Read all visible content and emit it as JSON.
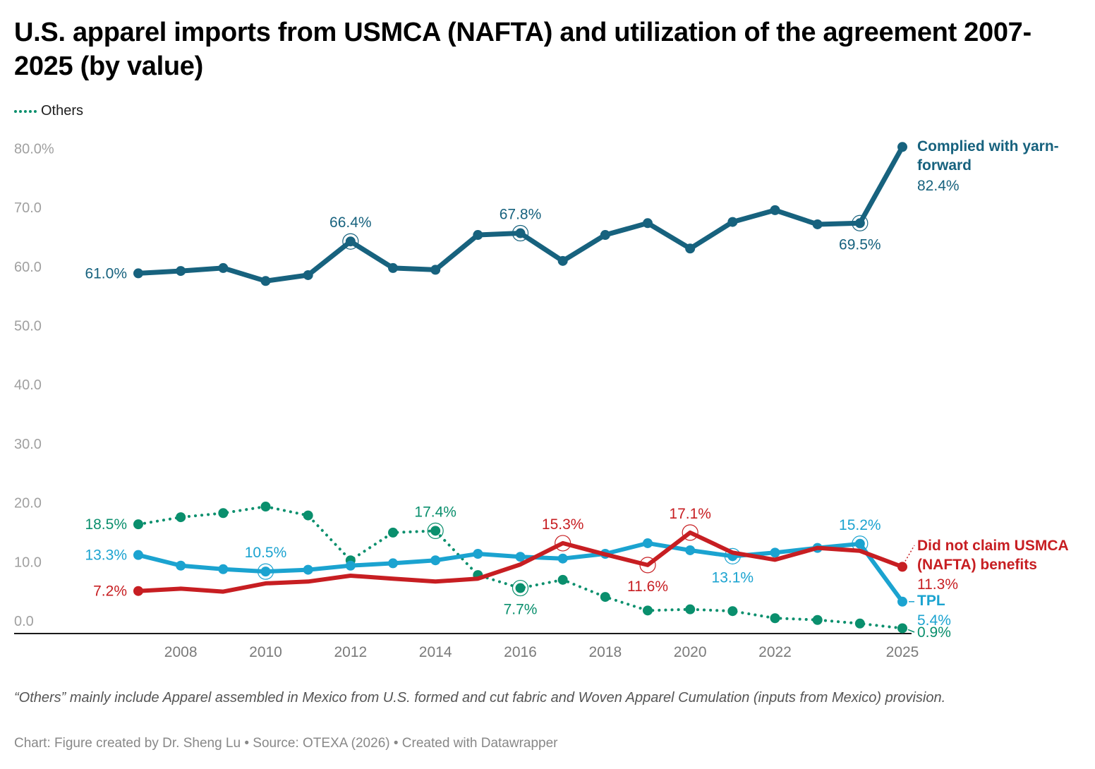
{
  "header": {
    "title": "U.S. apparel imports from USMCA (NAFTA) and utilization of the agreement 2007-2025 (by value)"
  },
  "legend": {
    "items": [
      {
        "label": "Others",
        "color": "#0a8f6d",
        "style": "dotted"
      }
    ]
  },
  "footer": {
    "notes": "“Others” mainly include Apparel assembled in Mexico from U.S. formed and cut fabric and Woven Apparel Cumulation (inputs from Mexico) provision.",
    "byline": "Chart: Figure created by Dr. Sheng Lu • Source: OTEXA (2026) • Created with Datawrapper"
  },
  "chart_data": {
    "type": "line",
    "title": "U.S. apparel imports from USMCA (NAFTA) and utilization of the agreement 2007-2025 (by value)",
    "xlabel": "",
    "ylabel": "",
    "x": [
      2007,
      2008,
      2009,
      2010,
      2011,
      2012,
      2013,
      2014,
      2015,
      2016,
      2017,
      2018,
      2019,
      2020,
      2021,
      2022,
      2023,
      2024,
      2025
    ],
    "x_tick_labels": [
      "2008",
      "2010",
      "2012",
      "2014",
      "2016",
      "2018",
      "2020",
      "2022",
      "2025"
    ],
    "x_ticks": [
      2008,
      2010,
      2012,
      2014,
      2016,
      2018,
      2020,
      2022,
      2025
    ],
    "y_tick_labels": [
      "0.0",
      "10.0",
      "20.0",
      "30.0",
      "40.0",
      "50.0",
      "60.0",
      "70.0",
      "80.0%"
    ],
    "y_ticks": [
      0,
      10,
      20,
      30,
      40,
      50,
      60,
      70,
      80
    ],
    "ylim": [
      0,
      85
    ],
    "grid": false,
    "legend_position": "top-left",
    "series": [
      {
        "name": "Complied with yarn-forward",
        "name_lines": [
          "Complied with yarn-",
          "forward"
        ],
        "color": "#17627e",
        "style": "solid",
        "end_label": "82.4%",
        "values": [
          61.0,
          61.4,
          61.9,
          59.7,
          60.7,
          66.4,
          61.9,
          61.6,
          67.5,
          67.8,
          63.1,
          67.5,
          69.5,
          65.2,
          69.7,
          71.7,
          69.3,
          69.5,
          82.4
        ],
        "annotations": [
          {
            "x": 2007,
            "label": "61.0%",
            "pos": "left"
          },
          {
            "x": 2012,
            "label": "66.4%",
            "pos": "above",
            "ring": true
          },
          {
            "x": 2016,
            "label": "67.8%",
            "pos": "above",
            "ring": true
          },
          {
            "x": 2024,
            "label": "69.5%",
            "pos": "below",
            "ring": true
          }
        ]
      },
      {
        "name": "TPL",
        "name_lines": [
          "TPL"
        ],
        "color": "#1ba3d0",
        "style": "solid",
        "end_label": "5.4%",
        "values": [
          13.3,
          11.5,
          10.9,
          10.5,
          10.8,
          11.5,
          11.9,
          12.4,
          13.5,
          13.0,
          12.7,
          13.5,
          15.3,
          14.1,
          13.1,
          13.7,
          14.5,
          15.2,
          5.4
        ],
        "annotations": [
          {
            "x": 2007,
            "label": "13.3%",
            "pos": "left"
          },
          {
            "x": 2010,
            "label": "10.5%",
            "pos": "above",
            "ring": true
          },
          {
            "x": 2021,
            "label": "13.1%",
            "pos": "below",
            "ring": true
          },
          {
            "x": 2024,
            "label": "15.2%",
            "pos": "above",
            "ring": true
          }
        ]
      },
      {
        "name": "Did not claim USMCA (NAFTA) benefits",
        "name_lines": [
          "Did not claim USMCA",
          "(NAFTA) benefits"
        ],
        "color": "#c71e22",
        "style": "solid",
        "end_label": "11.3%",
        "values": [
          7.2,
          7.6,
          7.1,
          8.5,
          8.8,
          9.8,
          9.3,
          8.8,
          9.3,
          11.7,
          15.3,
          13.4,
          11.6,
          17.1,
          13.7,
          12.5,
          14.5,
          14.0,
          11.3
        ],
        "annotations": [
          {
            "x": 2007,
            "label": "7.2%",
            "pos": "left"
          },
          {
            "x": 2017,
            "label": "15.3%",
            "pos": "above",
            "ring": true
          },
          {
            "x": 2019,
            "label": "11.6%",
            "pos": "below",
            "ring": true
          },
          {
            "x": 2020,
            "label": "17.1%",
            "pos": "above",
            "ring": true
          }
        ]
      },
      {
        "name": "Others",
        "name_lines": [],
        "color": "#0a8f6d",
        "style": "dotted",
        "end_label": "0.9%",
        "values": [
          18.5,
          19.7,
          20.4,
          21.5,
          20.0,
          12.4,
          17.1,
          17.4,
          9.9,
          7.7,
          9.1,
          6.2,
          3.9,
          4.1,
          3.8,
          2.6,
          2.3,
          1.7,
          0.9
        ],
        "annotations": [
          {
            "x": 2007,
            "label": "18.5%",
            "pos": "left"
          },
          {
            "x": 2014,
            "label": "17.4%",
            "pos": "above",
            "ring": true
          },
          {
            "x": 2016,
            "label": "7.7%",
            "pos": "below",
            "ring": true
          }
        ]
      }
    ]
  }
}
